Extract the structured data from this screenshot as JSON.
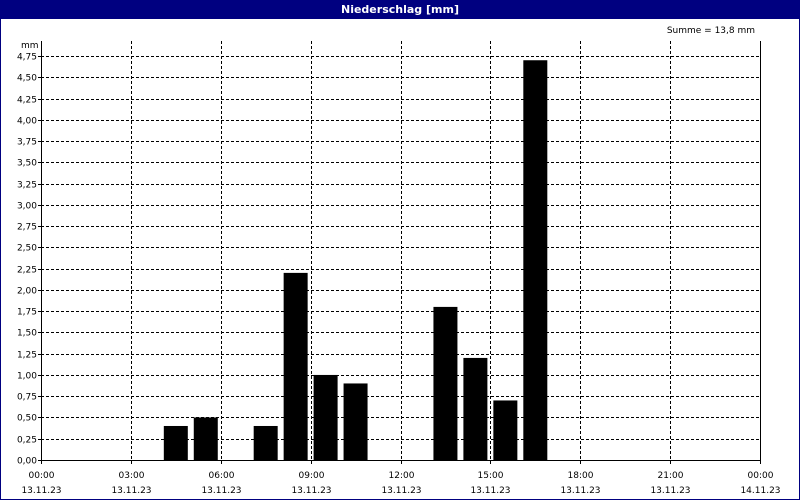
{
  "chart_data": {
    "type": "bar",
    "title": "Niederschlag [mm]",
    "unit": "mm",
    "sum_label": "Summe = 13,8 mm",
    "ylim": [
      0,
      4.75
    ],
    "y_ticks": [
      "0,00",
      "0,25",
      "0,50",
      "0,75",
      "1,00",
      "1,25",
      "1,50",
      "1,75",
      "2,00",
      "2,25",
      "2,50",
      "2,75",
      "3,00",
      "3,25",
      "3,50",
      "3,75",
      "4,00",
      "4,25",
      "4,50",
      "4,75"
    ],
    "x_ticks": [
      {
        "time": "00:00",
        "date": "13.11.23"
      },
      {
        "time": "03:00",
        "date": "13.11.23"
      },
      {
        "time": "06:00",
        "date": "13.11.23"
      },
      {
        "time": "09:00",
        "date": "13.11.23"
      },
      {
        "time": "12:00",
        "date": "13.11.23"
      },
      {
        "time": "15:00",
        "date": "13.11.23"
      },
      {
        "time": "18:00",
        "date": "13.11.23"
      },
      {
        "time": "21:00",
        "date": "13.11.23"
      },
      {
        "time": "00:00",
        "date": "14.11.23"
      }
    ],
    "x_range_hours": [
      0,
      24
    ],
    "bars": [
      {
        "hour": 4.5,
        "value": 0.4
      },
      {
        "hour": 5.5,
        "value": 0.5
      },
      {
        "hour": 7.5,
        "value": 0.4
      },
      {
        "hour": 8.5,
        "value": 2.2
      },
      {
        "hour": 9.5,
        "value": 1.0
      },
      {
        "hour": 10.5,
        "value": 0.9
      },
      {
        "hour": 13.5,
        "value": 1.8
      },
      {
        "hour": 14.5,
        "value": 1.2
      },
      {
        "hour": 15.5,
        "value": 0.7
      },
      {
        "hour": 16.5,
        "value": 4.7
      }
    ],
    "grid": true,
    "bar_color": "#000000",
    "title_bar_color": "#000080"
  }
}
